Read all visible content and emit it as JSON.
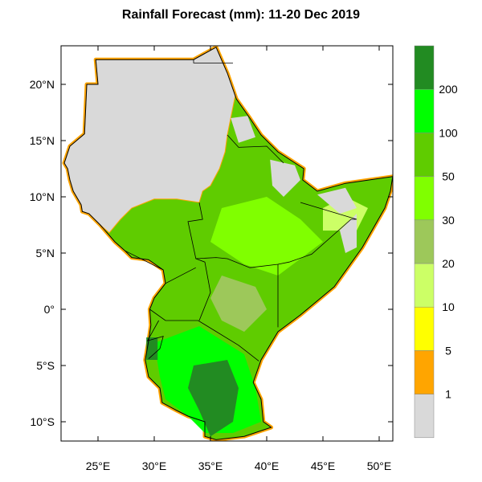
{
  "title": "Rainfall Forecast (mm): 11-20 Dec 2019",
  "map": {
    "region": "East Africa",
    "lon_range": [
      21.7,
      51.2
    ],
    "lat_range": [
      -11.7,
      23.4
    ],
    "x_ticks": [
      {
        "value": 25,
        "label": "25°E"
      },
      {
        "value": 30,
        "label": "30°E"
      },
      {
        "value": 35,
        "label": "35°E"
      },
      {
        "value": 40,
        "label": "40°E"
      },
      {
        "value": 45,
        "label": "45°E"
      },
      {
        "value": 50,
        "label": "50°E"
      }
    ],
    "y_ticks": [
      {
        "value": 20,
        "label": "20°N"
      },
      {
        "value": 15,
        "label": "15°N"
      },
      {
        "value": 10,
        "label": "10°N"
      },
      {
        "value": 5,
        "label": "5°N"
      },
      {
        "value": 0,
        "label": "0°"
      },
      {
        "value": -5,
        "label": "5°S"
      },
      {
        "value": -10,
        "label": "10°S"
      }
    ],
    "no_rain_color": "#d9d9d9"
  },
  "legend": {
    "colors": [
      "#d9d9d9",
      "#ffa500",
      "#ffff00",
      "#ccff66",
      "#9dc85a",
      "#80ff00",
      "#5fcc00",
      "#00ff00",
      "#228b22"
    ],
    "labels": [
      "1",
      "5",
      "10",
      "20",
      "30",
      "50",
      "100",
      "200"
    ]
  }
}
